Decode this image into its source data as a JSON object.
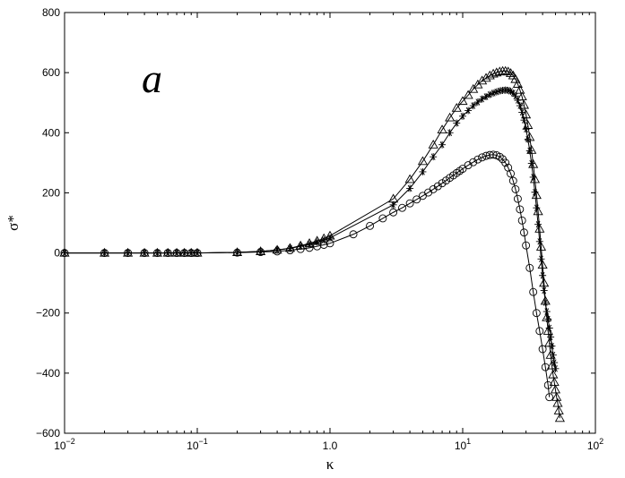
{
  "chart_data": {
    "type": "line",
    "panel_label": "a",
    "xlabel": "κ",
    "ylabel": "σ*",
    "xscale": "log",
    "xlim": [
      0.01,
      100
    ],
    "ylim": [
      -600,
      800
    ],
    "grid": false,
    "legend": "none",
    "xticks": [
      {
        "base": "10",
        "exp": "−2"
      },
      {
        "base": "10",
        "exp": "−1"
      },
      {
        "base": "10",
        "exp": "0",
        "plain": "1.0"
      },
      {
        "base": "10",
        "exp": "1"
      },
      {
        "base": "10",
        "exp": "2"
      }
    ],
    "yticks": [
      "800",
      "600",
      "400",
      "200",
      "0",
      "−200",
      "−400",
      "−600"
    ],
    "yticks_values": [
      800,
      600,
      400,
      200,
      0,
      -200,
      -400,
      -600
    ],
    "series": [
      {
        "marker": "triangle",
        "x": [
          0.01,
          0.02,
          0.03,
          0.04,
          0.05,
          0.06,
          0.07,
          0.08,
          0.09,
          0.1,
          0.2,
          0.3,
          0.4,
          0.5,
          0.6,
          0.7,
          0.8,
          0.9,
          1.0,
          3.0,
          4.0,
          5.0,
          6.0,
          7.0,
          8.0,
          9.0,
          10.0,
          11.0,
          12.0,
          13.0,
          14.0,
          15.0,
          16.0,
          17.0,
          18.0,
          19.0,
          20.0,
          21.0,
          22.0,
          23.0,
          24.0,
          25.0,
          26.0,
          27.0,
          28.0,
          29.0,
          30.0,
          31.0,
          32.0,
          33.0,
          34.0,
          35.0,
          36.0,
          37.0,
          38.0,
          39.0,
          40.0,
          41.0,
          42.0,
          43.0,
          44.0,
          45.0,
          46.0,
          47.0,
          48.0,
          49.0,
          50.0,
          51.0,
          52.0,
          53.0,
          54.0
        ],
        "y": [
          0,
          0,
          0,
          0,
          0,
          0,
          0,
          0,
          0,
          0,
          2,
          5,
          10,
          16,
          24,
          32,
          40,
          48,
          57,
          180,
          245,
          305,
          360,
          410,
          450,
          482,
          505,
          525,
          545,
          560,
          573,
          582,
          590,
          596,
          600,
          603,
          605,
          605,
          603,
          598,
          590,
          578,
          562,
          542,
          520,
          492,
          460,
          425,
          385,
          342,
          295,
          245,
          192,
          138,
          80,
          20,
          -40,
          -100,
          -160,
          -215,
          -260,
          -300,
          -340,
          -375,
          -405,
          -430,
          -455,
          -480,
          -500,
          -525,
          -550
        ]
      },
      {
        "marker": "star",
        "x": [
          0.01,
          0.02,
          0.03,
          0.04,
          0.05,
          0.06,
          0.07,
          0.08,
          0.09,
          0.1,
          0.2,
          0.3,
          0.4,
          0.5,
          0.6,
          0.7,
          0.8,
          0.9,
          1.0,
          3.0,
          4.0,
          5.0,
          6.0,
          7.0,
          8.0,
          9.0,
          10.0,
          11.0,
          12.0,
          13.0,
          14.0,
          15.0,
          16.0,
          17.0,
          18.0,
          19.0,
          20.0,
          21.0,
          22.0,
          23.0,
          24.0,
          25.0,
          26.0,
          27.0,
          28.0,
          29.0,
          30.0,
          31.0,
          32.0,
          33.0,
          34.0,
          35.0,
          36.0,
          37.0,
          38.0,
          39.0,
          40.0,
          41.0,
          42.0,
          43.0,
          44.0,
          45.0,
          46.0,
          47.0,
          48.0,
          49.0,
          50.0
        ],
        "y": [
          0,
          0,
          0,
          0,
          0,
          0,
          0,
          0,
          0,
          0,
          2,
          5,
          10,
          15,
          22,
          29,
          36,
          43,
          50,
          160,
          215,
          270,
          320,
          360,
          400,
          432,
          455,
          474,
          490,
          502,
          512,
          520,
          527,
          532,
          536,
          539,
          541,
          542,
          541,
          538,
          532,
          522,
          508,
          490,
          468,
          442,
          412,
          378,
          340,
          298,
          252,
          202,
          150,
          95,
          38,
          -20,
          -75,
          -125,
          -165,
          -195,
          -220,
          -250,
          -280,
          -310,
          -340,
          -365,
          -385
        ]
      },
      {
        "marker": "circle",
        "x": [
          0.01,
          0.02,
          0.03,
          0.04,
          0.05,
          0.06,
          0.07,
          0.08,
          0.09,
          0.1,
          0.2,
          0.3,
          0.4,
          0.5,
          0.6,
          0.7,
          0.8,
          0.9,
          1.0,
          1.5,
          2.0,
          2.5,
          3.0,
          3.5,
          4.0,
          4.5,
          5.0,
          5.5,
          6.0,
          6.5,
          7.0,
          7.5,
          8.0,
          8.5,
          9.0,
          9.5,
          10.0,
          11.0,
          12.0,
          13.0,
          14.0,
          15.0,
          16.0,
          17.0,
          18.0,
          19.0,
          20.0,
          21.0,
          22.0,
          23.0,
          24.0,
          25.0,
          26.0,
          27.0,
          28.0,
          29.0,
          30.0,
          32.0,
          34.0,
          36.0,
          38.0,
          40.0,
          42.0,
          44.0,
          45.0
        ],
        "y": [
          0,
          0,
          0,
          0,
          0,
          0,
          0,
          0,
          0,
          0,
          1,
          3,
          5,
          9,
          13,
          17,
          22,
          27,
          32,
          62,
          90,
          115,
          135,
          150,
          165,
          178,
          190,
          201,
          212,
          222,
          232,
          241,
          250,
          258,
          266,
          273,
          280,
          292,
          302,
          311,
          318,
          323,
          326,
          327,
          325,
          320,
          312,
          300,
          284,
          264,
          240,
          212,
          180,
          145,
          108,
          68,
          25,
          -50,
          -130,
          -200,
          -260,
          -320,
          -380,
          -440,
          -480
        ]
      }
    ]
  }
}
